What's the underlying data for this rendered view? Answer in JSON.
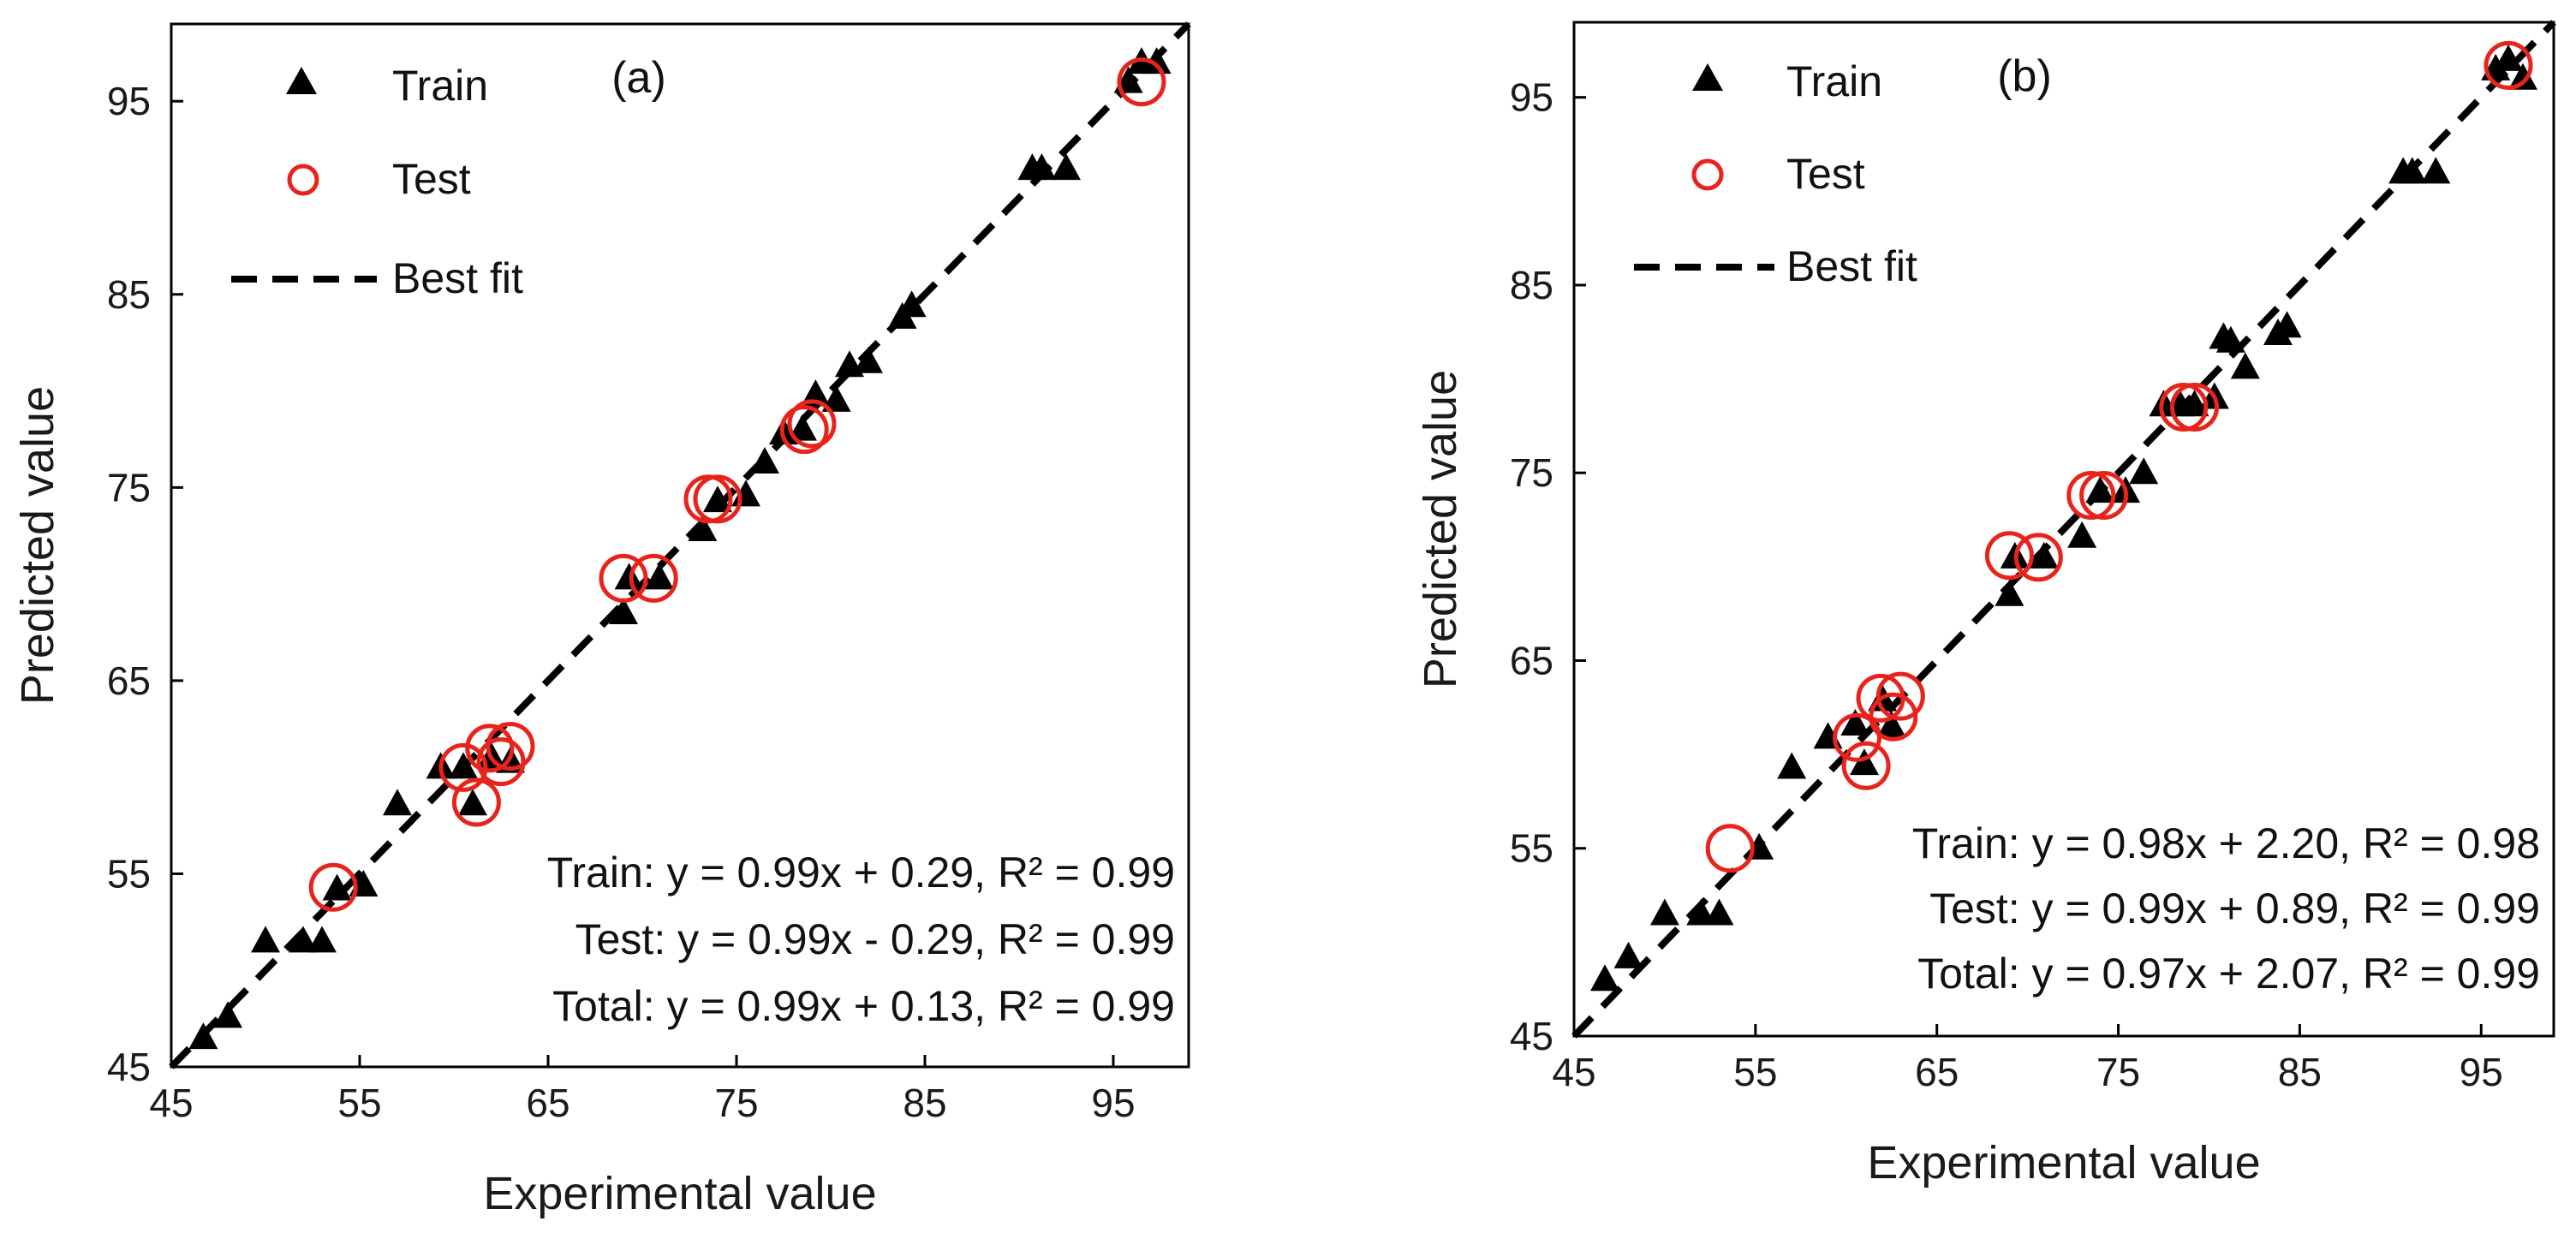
{
  "chart_data": [
    {
      "type": "scatter",
      "panel_label": "(a)",
      "xlabel": "Experimental value",
      "ylabel": "Predicted value",
      "xlim": [
        45,
        99
      ],
      "ylim": [
        45,
        99
      ],
      "xticks": [
        "45",
        "55",
        "65",
        "75",
        "85",
        "95"
      ],
      "yticks": [
        "45",
        "55",
        "65",
        "75",
        "85",
        "95"
      ],
      "legend": {
        "placement": "top-left",
        "train": "Train",
        "test": "Test",
        "fit": "Best fit"
      },
      "equations": [
        "Train: y = 0.99x + 0.29, R² = 0.99",
        "Test: y = 0.99x - 0.29, R² = 0.99",
        "Total: y = 0.99x + 0.13, R² = 0.99"
      ],
      "series": [
        {
          "name": "Train",
          "marker": "triangle",
          "color": "#000000",
          "points": [
            [
              46.7,
              46.5
            ],
            [
              48,
              47.6
            ],
            [
              50,
              51.5
            ],
            [
              52,
              51.5
            ],
            [
              53,
              51.5
            ],
            [
              53.8,
              54.2
            ],
            [
              55.2,
              54.4
            ],
            [
              57,
              58.6
            ],
            [
              59.3,
              60.5
            ],
            [
              60.5,
              60.5
            ],
            [
              61,
              58.6
            ],
            [
              62,
              61
            ],
            [
              63,
              60.8
            ],
            [
              69,
              68.5
            ],
            [
              69.3,
              70.3
            ],
            [
              70.9,
              70.3
            ],
            [
              73.2,
              72.8
            ],
            [
              74,
              74.3
            ],
            [
              75.5,
              74.6
            ],
            [
              76.5,
              76.3
            ],
            [
              77.5,
              77.8
            ],
            [
              78.5,
              78
            ],
            [
              79.2,
              79.8
            ],
            [
              80.3,
              79.5
            ],
            [
              81,
              81.3
            ],
            [
              82,
              81.5
            ],
            [
              83.8,
              83.8
            ],
            [
              84.3,
              84.4
            ],
            [
              90.7,
              91.5
            ],
            [
              91.2,
              91.5
            ],
            [
              92.5,
              91.5
            ],
            [
              95.8,
              96
            ],
            [
              96.5,
              97
            ],
            [
              97.3,
              97
            ]
          ]
        },
        {
          "name": "Test",
          "marker": "circle",
          "color": "#e8231c",
          "points": [
            [
              53.6,
              54.3
            ],
            [
              60.5,
              60.5
            ],
            [
              61.2,
              58.7
            ],
            [
              61.9,
              61.5
            ],
            [
              62.5,
              60.8
            ],
            [
              63,
              61.6
            ],
            [
              69,
              70.3
            ],
            [
              70.6,
              70.3
            ],
            [
              73.5,
              74.4
            ],
            [
              74,
              74.4
            ],
            [
              78.6,
              78
            ],
            [
              79,
              78.3
            ],
            [
              96.5,
              96
            ]
          ]
        }
      ]
    },
    {
      "type": "scatter",
      "panel_label": "(b)",
      "xlabel": "Experimental value",
      "ylabel": "Predicted value",
      "xlim": [
        45,
        99
      ],
      "ylim": [
        45,
        99
      ],
      "xticks": [
        "45",
        "55",
        "65",
        "75",
        "85",
        "95"
      ],
      "yticks": [
        "45",
        "55",
        "65",
        "75",
        "85",
        "95"
      ],
      "legend": {
        "placement": "top-left",
        "train": "Train",
        "test": "Test",
        "fit": "Best fit"
      },
      "equations": [
        "Train: y = 0.98x + 2.20, R² = 0.98",
        "Test: y = 0.99x + 0.89, R² = 0.99",
        "Total: y = 0.97x + 2.07, R² = 0.99"
      ],
      "series": [
        {
          "name": "Train",
          "marker": "triangle",
          "color": "#000000",
          "points": [
            [
              46.7,
              48
            ],
            [
              48,
              49.2
            ],
            [
              50,
              51.5
            ],
            [
              52,
              51.5
            ],
            [
              53,
              51.5
            ],
            [
              55.2,
              55
            ],
            [
              57,
              59.3
            ],
            [
              59,
              60.9
            ],
            [
              60.5,
              61.6
            ],
            [
              61,
              59.5
            ],
            [
              62,
              62.9
            ],
            [
              62.5,
              61.5
            ],
            [
              69,
              68.5
            ],
            [
              69.3,
              70.5
            ],
            [
              70.9,
              70.5
            ],
            [
              73,
              71.6
            ],
            [
              74,
              74
            ],
            [
              75.4,
              74
            ],
            [
              76.4,
              75
            ],
            [
              77.5,
              78.6
            ],
            [
              78.4,
              78.6
            ],
            [
              79.2,
              78.6
            ],
            [
              80.3,
              79
            ],
            [
              80.8,
              82.2
            ],
            [
              81.2,
              82
            ],
            [
              82,
              80.6
            ],
            [
              83.8,
              82.4
            ],
            [
              84.3,
              82.8
            ],
            [
              90.7,
              91
            ],
            [
              91.2,
              91
            ],
            [
              92.5,
              91
            ],
            [
              95.8,
              96.5
            ],
            [
              96.5,
              97
            ],
            [
              97.3,
              96
            ]
          ]
        },
        {
          "name": "Test",
          "marker": "circle",
          "color": "#e8231c",
          "points": [
            [
              53.6,
              55
            ],
            [
              60.6,
              60.9
            ],
            [
              61.1,
              59.4
            ],
            [
              61.9,
              63
            ],
            [
              62.6,
              62
            ],
            [
              63,
              63.1
            ],
            [
              69,
              70.6
            ],
            [
              70.6,
              70.5
            ],
            [
              73.5,
              73.8
            ],
            [
              74.2,
              73.8
            ],
            [
              78.6,
              78.5
            ],
            [
              79.2,
              78.5
            ],
            [
              96.5,
              96.7
            ]
          ]
        }
      ]
    }
  ]
}
